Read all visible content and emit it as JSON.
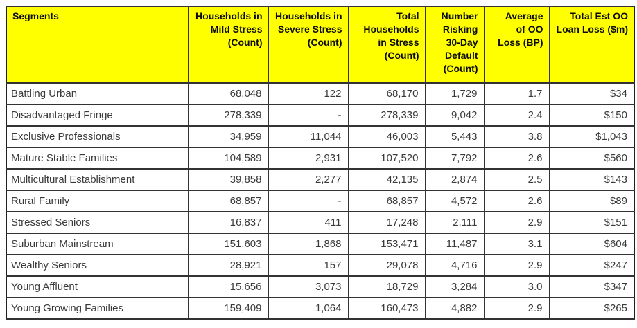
{
  "chart_data": {
    "type": "table",
    "style": {
      "page_bg": "#FFFFFF",
      "header_bg": "#FFFF00",
      "header_text": "#0d0d0d",
      "body_bg": "#FFFFFF",
      "body_text": "#3a3a3a",
      "grid_color": "#333333",
      "outer_border": "#1f1f1f"
    },
    "columns": [
      {
        "label": "Segments",
        "align": "left"
      },
      {
        "label": "Households in\nMild Stress\n(Count)",
        "align": "right"
      },
      {
        "label": "Households in\nSevere Stress\n(Count)",
        "align": "right"
      },
      {
        "label": "Total\nHouseholds\nin Stress\n(Count)",
        "align": "right"
      },
      {
        "label": "Number\nRisking\n30-Day\nDefault\n(Count)",
        "align": "right"
      },
      {
        "label": "Average\nof OO\nLoss (BP)",
        "align": "right"
      },
      {
        "label": "Total Est OO\nLoan Loss ($m)",
        "align": "right"
      }
    ],
    "rows": [
      {
        "cells": [
          "Battling Urban",
          "68,048",
          "122",
          "68,170",
          "1,729",
          "1.7",
          "$34"
        ]
      },
      {
        "cells": [
          "Disadvantaged Fringe",
          "278,339",
          "-",
          "278,339",
          "9,042",
          "2.4",
          "$150"
        ]
      },
      {
        "cells": [
          "Exclusive Professionals",
          "34,959",
          "11,044",
          "46,003",
          "5,443",
          "3.8",
          "$1,043"
        ]
      },
      {
        "cells": [
          "Mature Stable Families",
          "104,589",
          "2,931",
          "107,520",
          "7,792",
          "2.6",
          "$560"
        ]
      },
      {
        "cells": [
          "Multicultural Establishment",
          "39,858",
          "2,277",
          "42,135",
          "2,874",
          "2.5",
          "$143"
        ]
      },
      {
        "cells": [
          "Rural Family",
          "68,857",
          "-",
          "68,857",
          "4,572",
          "2.6",
          "$89"
        ]
      },
      {
        "cells": [
          "Stressed Seniors",
          "16,837",
          "411",
          "17,248",
          "2,111",
          "2.9",
          "$151"
        ]
      },
      {
        "cells": [
          "Suburban Mainstream",
          "151,603",
          "1,868",
          "153,471",
          "11,487",
          "3.1",
          "$604"
        ]
      },
      {
        "cells": [
          "Wealthy Seniors",
          "28,921",
          "157",
          "29,078",
          "4,716",
          "2.9",
          "$247"
        ]
      },
      {
        "cells": [
          "Young Affluent",
          "15,656",
          "3,073",
          "18,729",
          "3,284",
          "3.0",
          "$347"
        ]
      },
      {
        "cells": [
          "Young Growing Families",
          "159,409",
          "1,064",
          "160,473",
          "4,882",
          "2.9",
          "$265"
        ]
      }
    ]
  }
}
